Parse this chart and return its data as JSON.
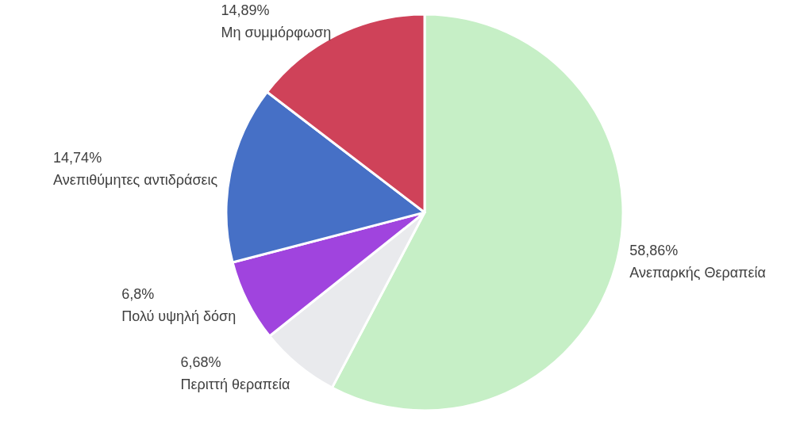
{
  "chart_data": {
    "type": "pie",
    "categories": [
      "Ανεπαρκής Θεραπεία",
      "Περιττή θεραπεία",
      "Πολύ υψηλή δόση",
      "Ανεπιθύμητες αντιδράσεις",
      "Μη συμμόρφωση"
    ],
    "values": [
      58.86,
      6.68,
      6.8,
      14.74,
      14.89
    ],
    "colors": [
      "#c6efc6",
      "#e9eaed",
      "#a044de",
      "#4670c6",
      "#cf4259"
    ],
    "value_labels": [
      "58,86%",
      "6,68%",
      "6,8%",
      "14,74%",
      "14,89%"
    ]
  }
}
